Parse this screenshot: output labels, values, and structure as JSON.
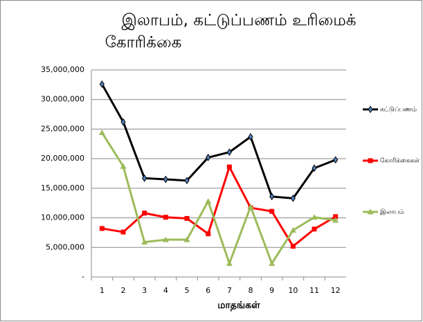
{
  "chart_data": {
    "type": "line",
    "title": [
      "இலாபம், கட்டுப்பணம் உரிமைக்",
      "கோரிக்கை"
    ],
    "x_label": "மாதங்கள்",
    "categories": [
      "1",
      "2",
      "3",
      "4",
      "5",
      "6",
      "7",
      "8",
      "9",
      "10",
      "11",
      "12"
    ],
    "series": [
      {
        "name": "கட்டுப்பணம்",
        "color": "#000000",
        "marker": "diamond",
        "values": [
          32600000,
          26200000,
          16700000,
          16500000,
          16300000,
          20200000,
          21100000,
          23700000,
          13600000,
          13300000,
          18400000,
          19800000
        ]
      },
      {
        "name": "கோரிக்கைகள்",
        "color": "#ff0000",
        "marker": "square",
        "values": [
          8200000,
          7600000,
          10800000,
          10100000,
          9900000,
          7300000,
          18600000,
          11700000,
          11100000,
          5200000,
          8100000,
          10200000
        ]
      },
      {
        "name": "இலாபம்",
        "color": "#9bbb59",
        "marker": "triangle",
        "values": [
          24400000,
          18700000,
          5900000,
          6300000,
          6300000,
          12800000,
          2300000,
          11900000,
          2300000,
          7900000,
          10100000,
          9600000
        ]
      }
    ],
    "ylim": [
      0,
      35000000
    ],
    "yticks": [
      {
        "value": 0,
        "label": "-"
      },
      {
        "value": 5000000,
        "label": "5,000,000"
      },
      {
        "value": 10000000,
        "label": "10,000,000"
      },
      {
        "value": 15000000,
        "label": "15,000,000"
      },
      {
        "value": 20000000,
        "label": "20,000,000"
      },
      {
        "value": 25000000,
        "label": "25,000,000"
      },
      {
        "value": 30000000,
        "label": "30,000,000"
      },
      {
        "value": 35000000,
        "label": "35,000,000"
      }
    ],
    "grid": true,
    "legend": "right"
  }
}
